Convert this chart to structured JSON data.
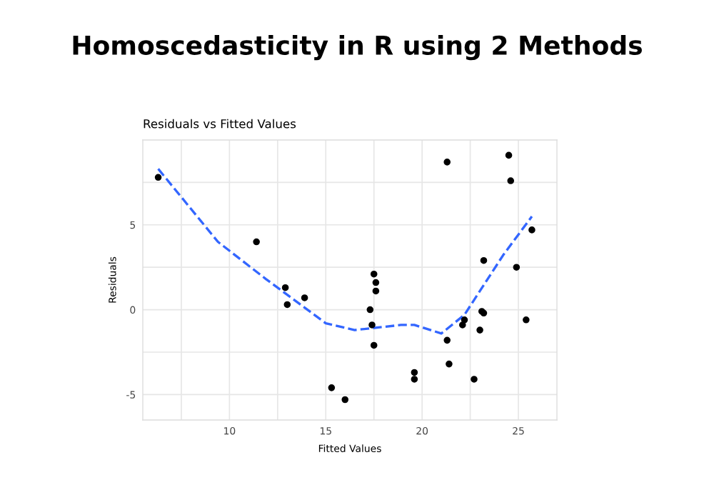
{
  "chart_data": {
    "type": "scatter",
    "title": "Homoscedasticity in R using 2 Methods",
    "subtitle": "Residuals vs Fitted Values",
    "xlabel": "Fitted Values",
    "ylabel": "Residuals",
    "series": [
      {
        "color": "#000000",
        "x": [
          6.3,
          11.4,
          12.9,
          13.0,
          13.9,
          17.5,
          17.6,
          17.6,
          17.3,
          17.4,
          17.5,
          19.6,
          19.6,
          15.3,
          16.0,
          21.3,
          24.5,
          24.6,
          25.7,
          23.2,
          24.9,
          23.1,
          23.2,
          22.2,
          22.1,
          25.4,
          23.0,
          21.3,
          21.4,
          22.7
        ],
        "values": [
          7.8,
          4.0,
          1.3,
          0.3,
          0.7,
          2.1,
          1.6,
          1.1,
          0.0,
          -0.9,
          -2.1,
          -3.7,
          -4.1,
          -4.6,
          -5.3,
          8.7,
          9.1,
          7.6,
          4.7,
          2.9,
          2.5,
          -0.1,
          -0.2,
          -0.6,
          -0.9,
          -0.6,
          -1.2,
          -1.8,
          -3.2,
          -4.1
        ],
        "marker": "circle"
      },
      {
        "type": "line",
        "color": "#3366ff",
        "line_style": "dashed",
        "marker": "none",
        "x": [
          6.3,
          9.4,
          11.9,
          15.0,
          16.5,
          18.9,
          19.6,
          21.0,
          22.2,
          24.2,
          25.7
        ],
        "values": [
          8.3,
          4.0,
          1.8,
          -0.8,
          -1.2,
          -0.9,
          -0.9,
          -1.4,
          -0.3,
          3.2,
          5.5
        ]
      }
    ],
    "xlim": [
      5.5,
      27
    ],
    "ylim": [
      -6.5,
      10
    ],
    "xticks": [
      {
        "value": 7.5,
        "label": null
      },
      10,
      {
        "value": 12.5,
        "label": null
      },
      15,
      {
        "value": 17.5,
        "label": null
      },
      20,
      {
        "value": 22.5,
        "label": null
      },
      25
    ],
    "yticks": [
      {
        "value": -2.5,
        "label": null
      },
      -5,
      0,
      5,
      {
        "value": 2.5,
        "label": null
      },
      {
        "value": 7.5,
        "label": null
      }
    ],
    "grid": true
  }
}
